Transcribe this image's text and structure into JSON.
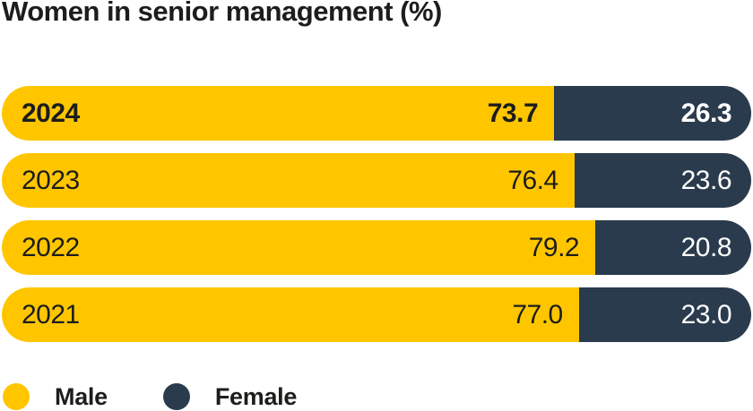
{
  "title": "Women in senior management (%)",
  "colors": {
    "male": "#ffc600",
    "female": "#2a3b4d",
    "text_dark": "#1d1d1b",
    "text_light": "#ffffff",
    "background": "#ffffff"
  },
  "chart_data": {
    "type": "bar",
    "orientation": "horizontal",
    "stacked": true,
    "title": "Women in senior management (%)",
    "categories": [
      "2024",
      "2023",
      "2022",
      "2021"
    ],
    "series": [
      {
        "name": "Male",
        "color": "#ffc600",
        "values": [
          73.7,
          76.4,
          79.2,
          77.0
        ]
      },
      {
        "name": "Female",
        "color": "#2a3b4d",
        "values": [
          26.3,
          23.6,
          20.8,
          23.0
        ]
      }
    ],
    "xlim": [
      0,
      100
    ],
    "value_labels": "inside-end",
    "legend_position": "bottom-left",
    "highlight_category": "2024",
    "grid": false
  },
  "rows": [
    {
      "year": "2024",
      "male_value": "73.7",
      "female_value": "26.3",
      "emphasis": true
    },
    {
      "year": "2023",
      "male_value": "76.4",
      "female_value": "23.6",
      "emphasis": false
    },
    {
      "year": "2022",
      "male_value": "79.2",
      "female_value": "20.8",
      "emphasis": false
    },
    {
      "year": "2021",
      "male_value": "77.0",
      "female_value": "23.0",
      "emphasis": false
    }
  ],
  "legend": {
    "items": [
      {
        "label": "Male",
        "color": "#ffc600"
      },
      {
        "label": "Female",
        "color": "#2a3b4d"
      }
    ]
  }
}
